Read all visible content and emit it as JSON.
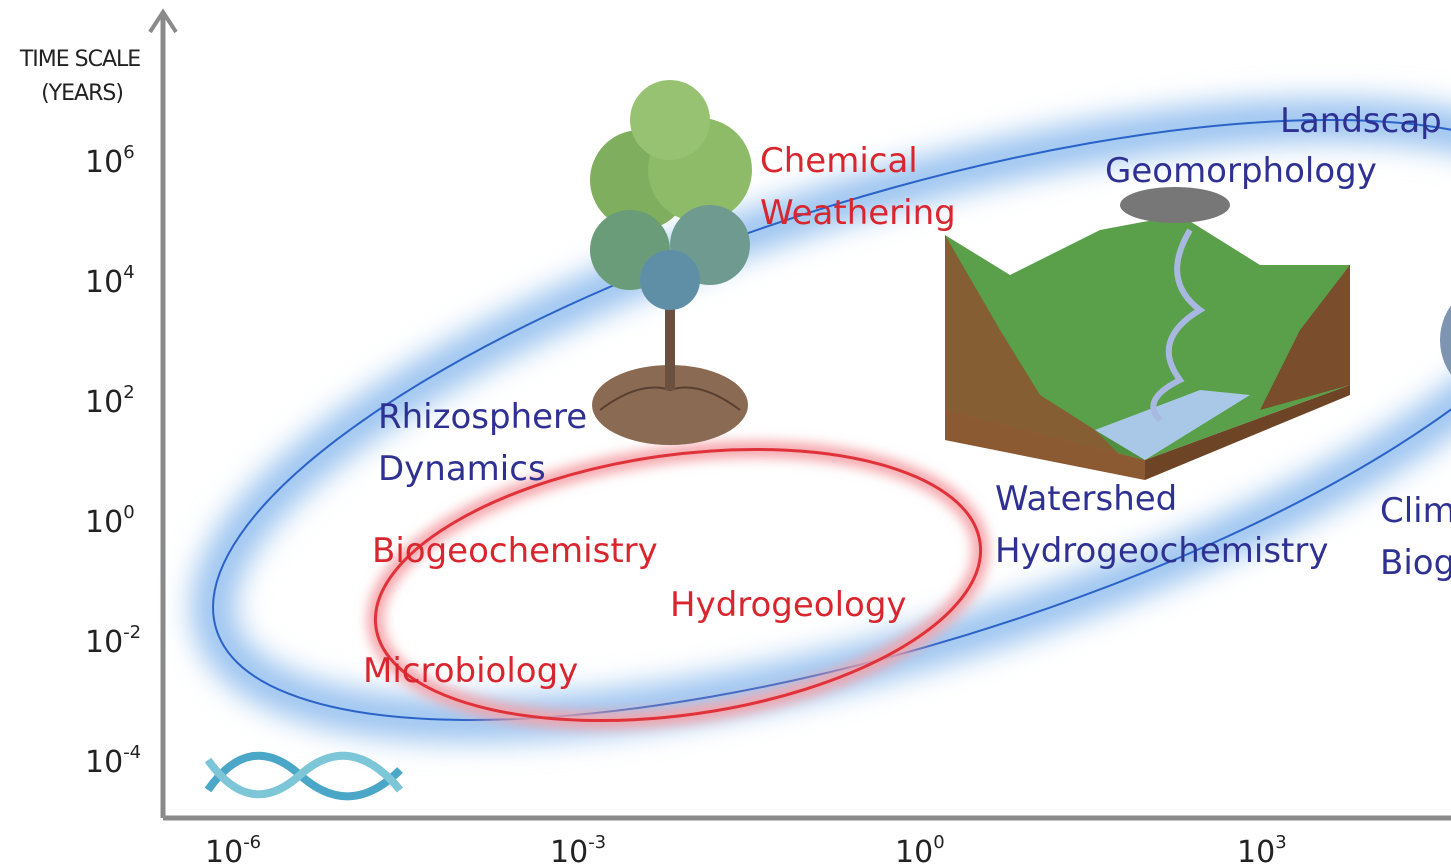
{
  "axis": {
    "title": [
      "TIME SCALE",
      "(YEARS)"
    ],
    "y_ticks": [
      {
        "base": "10",
        "exp": "6"
      },
      {
        "base": "10",
        "exp": "4"
      },
      {
        "base": "10",
        "exp": "2"
      },
      {
        "base": "10",
        "exp": "0"
      },
      {
        "base": "10",
        "exp": "-2"
      },
      {
        "base": "10",
        "exp": "-4"
      }
    ],
    "x_ticks": [
      {
        "base": "10",
        "exp": "-6"
      },
      {
        "base": "10",
        "exp": "-3"
      },
      {
        "base": "10",
        "exp": "0"
      },
      {
        "base": "10",
        "exp": "3"
      }
    ]
  },
  "labels": [
    {
      "lines": [
        "Landscap"
      ]
    },
    {
      "lines": [
        "Geomorphology"
      ]
    },
    {
      "lines": [
        "Chemical",
        "Weathering"
      ]
    },
    {
      "lines": [
        "Rhizosphere",
        "Dynamics"
      ]
    },
    {
      "lines": [
        "Biogeochemistry"
      ]
    },
    {
      "lines": [
        "Hydrogeology"
      ]
    },
    {
      "lines": [
        "Microbiology"
      ]
    },
    {
      "lines": [
        "Watershed",
        "Hydrogeochemistry"
      ]
    },
    {
      "lines": [
        "Clim",
        "Biog"
      ]
    }
  ]
}
